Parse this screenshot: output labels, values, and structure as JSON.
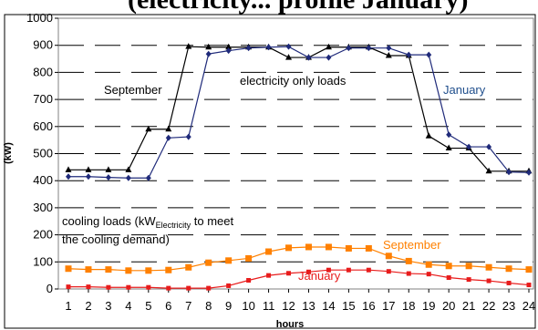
{
  "title": "(electricity... profile January)",
  "chart_data": {
    "type": "line",
    "xlabel": "hours",
    "ylabel": "(kW)",
    "xlim": [
      1,
      24
    ],
    "ylim": [
      0,
      1000
    ],
    "yticks": [
      0,
      100,
      200,
      300,
      400,
      500,
      600,
      700,
      800,
      900,
      1000
    ],
    "x": [
      1,
      2,
      3,
      4,
      5,
      6,
      7,
      8,
      9,
      10,
      11,
      12,
      13,
      14,
      15,
      16,
      17,
      18,
      19,
      20,
      21,
      22,
      23,
      24
    ],
    "grid": "horizontal dashed",
    "series": [
      {
        "name": "September",
        "group": "electricity only loads",
        "marker": "triangle",
        "color": "#000000",
        "values": [
          440,
          440,
          440,
          440,
          590,
          590,
          895,
          893,
          893,
          893,
          893,
          855,
          855,
          893,
          893,
          893,
          862,
          862,
          565,
          520,
          520,
          435,
          435,
          435
        ]
      },
      {
        "name": "January",
        "group": "electricity only loads",
        "marker": "diamond",
        "color": "#1f2a7a",
        "values": [
          415,
          415,
          412,
          410,
          410,
          558,
          562,
          868,
          880,
          890,
          893,
          895,
          855,
          855,
          890,
          890,
          890,
          865,
          865,
          570,
          525,
          525,
          432,
          430
        ]
      },
      {
        "name": "September",
        "group": "cooling loads",
        "marker": "square",
        "color": "#ff8000",
        "values": [
          75,
          72,
          72,
          68,
          68,
          70,
          80,
          97,
          105,
          113,
          138,
          152,
          155,
          155,
          150,
          150,
          122,
          103,
          90,
          85,
          85,
          80,
          75,
          72
        ]
      },
      {
        "name": "January",
        "group": "cooling loads",
        "marker": "square",
        "color": "#e81c1c",
        "values": [
          8,
          8,
          6,
          6,
          6,
          3,
          3,
          3,
          12,
          32,
          50,
          58,
          63,
          70,
          70,
          70,
          65,
          57,
          55,
          42,
          35,
          30,
          22,
          15
        ]
      }
    ],
    "annotations": {
      "september_elec": "September",
      "elec_only": "electricity only loads",
      "january_elec": "January",
      "cooling_line1": "cooling loads (kW",
      "cooling_sub": "Electricity",
      "cooling_line1_end": " to meet",
      "cooling_line2": "the cooling demand)",
      "september_cool": "September",
      "january_cool": "January"
    }
  }
}
